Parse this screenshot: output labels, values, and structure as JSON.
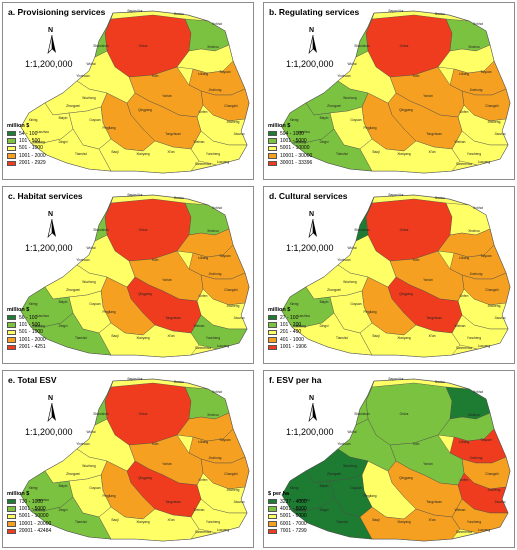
{
  "scale_text": "1:1,200,000",
  "north_letter": "N",
  "colors": {
    "c1": "#1e7b32",
    "c2": "#7cc241",
    "c3": "#ffff66",
    "c4": "#f5a021",
    "c5": "#f03c1e",
    "outline": "#5a5a5a"
  },
  "panels": [
    {
      "title": "a. Provisioning services",
      "legend_title": "million $",
      "legend": [
        "54 - 100",
        "101 - 500",
        "501 - 1000",
        "1001 - 2000",
        "2001 - 2929"
      ]
    },
    {
      "title": "b. Regulating services",
      "legend_title": "million $",
      "legend": [
        "594 - 1000",
        "1001 - 5000",
        "5001 - 10000",
        "10001 - 30000",
        "30001 - 33396"
      ]
    },
    {
      "title": "c. Habitat services",
      "legend_title": "million $",
      "legend": [
        "56 - 100",
        "101 - 500",
        "501 - 1000",
        "1001 - 2000",
        "2001 - 4251"
      ]
    },
    {
      "title": "d. Cultural services",
      "legend_title": "million $",
      "legend": [
        "27 - 100",
        "101 - 200",
        "201 - 400",
        "401 - 1000",
        "1001 - 1906"
      ]
    },
    {
      "title": "e. Total ESV",
      "legend_title": "million $",
      "legend": [
        "730 - 1000",
        "1001 - 5000",
        "5001 - 10000",
        "10001 - 20000",
        "20001 - 42484"
      ]
    },
    {
      "title": "f. ESV per ha",
      "legend_title": "$ per ha",
      "legend": [
        "3237 - 4000",
        "4001 - 5000",
        "5001 - 6000",
        "6001 - 7000",
        "7001 - 7299"
      ]
    }
  ],
  "place_labels": [
    "Bayan Nur",
    "Baotou",
    "Hohhot",
    "Ordos",
    "Shizuishan",
    "Wuhai",
    "Yinchuan",
    "Yulin",
    "Xinzhou",
    "Lüliang",
    "Taiyuan",
    "Jinzhong",
    "Yan'an",
    "Linfen",
    "Qingyang",
    "Pingliang",
    "Guyuan",
    "Zhongwei",
    "Wuzhong",
    "Baiyin",
    "Lanzhou",
    "Dingxi",
    "Tianshui",
    "Baoji",
    "Xianyang",
    "Xi'an",
    "Weinan",
    "Tongchuan",
    "Yuncheng",
    "Changzhi",
    "Jincheng",
    "Xining",
    "Haidong",
    "Jiaozuo",
    "Luoyang",
    "Sanmenxia"
  ]
}
